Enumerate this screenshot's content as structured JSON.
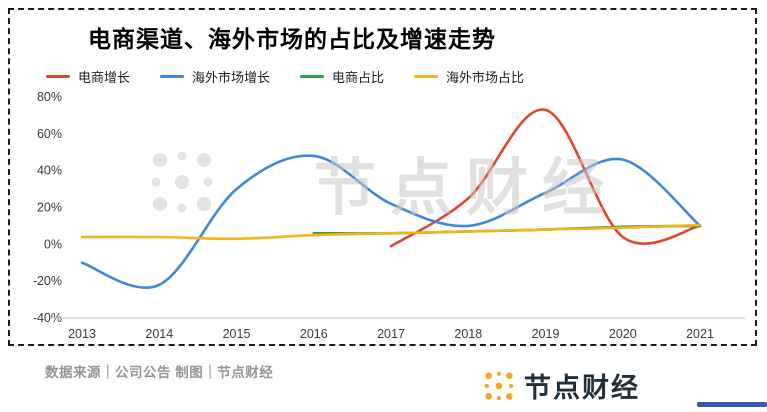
{
  "title": "电商渠道、海外市场的占比及增速走势",
  "watermark": {
    "text": "节点财经",
    "color": "#cccccc"
  },
  "footer": {
    "source_text": "数据来源｜公司公告  制图｜节点财经"
  },
  "brand": {
    "name": "节点财经",
    "icon_color": "#f7a41f",
    "accent_bar_color": "#3a57a8"
  },
  "chart_data": {
    "type": "line",
    "x": [
      2013,
      2014,
      2015,
      2016,
      2017,
      2018,
      2019,
      2020,
      2021
    ],
    "ylim": [
      -40,
      80
    ],
    "ytick_step": 20,
    "y_unit": "%",
    "grid": false,
    "legend_position": "top",
    "series": [
      {
        "name": "电商增长",
        "color": "#e0452c",
        "x": [
          2017,
          2018,
          2019,
          2020,
          2021
        ],
        "values": [
          -1,
          25,
          73,
          4,
          10
        ]
      },
      {
        "name": "海外市场增长",
        "color": "#3f87d8",
        "x": [
          2013,
          2014,
          2015,
          2016,
          2017,
          2018,
          2019,
          2020,
          2021
        ],
        "values": [
          -10,
          -22,
          30,
          48,
          22,
          10,
          28,
          46,
          10
        ]
      },
      {
        "name": "电商占比",
        "color": "#2f9e41",
        "x": [
          2016,
          2017,
          2018,
          2019,
          2020,
          2021
        ],
        "values": [
          6,
          6,
          7,
          8,
          9.5,
          10
        ]
      },
      {
        "name": "海外市场占比",
        "color": "#f5b31b",
        "x": [
          2013,
          2014,
          2015,
          2016,
          2017,
          2018,
          2019,
          2020,
          2021
        ],
        "values": [
          4,
          4,
          3,
          5,
          6,
          7,
          8,
          9,
          10.5
        ]
      }
    ]
  }
}
